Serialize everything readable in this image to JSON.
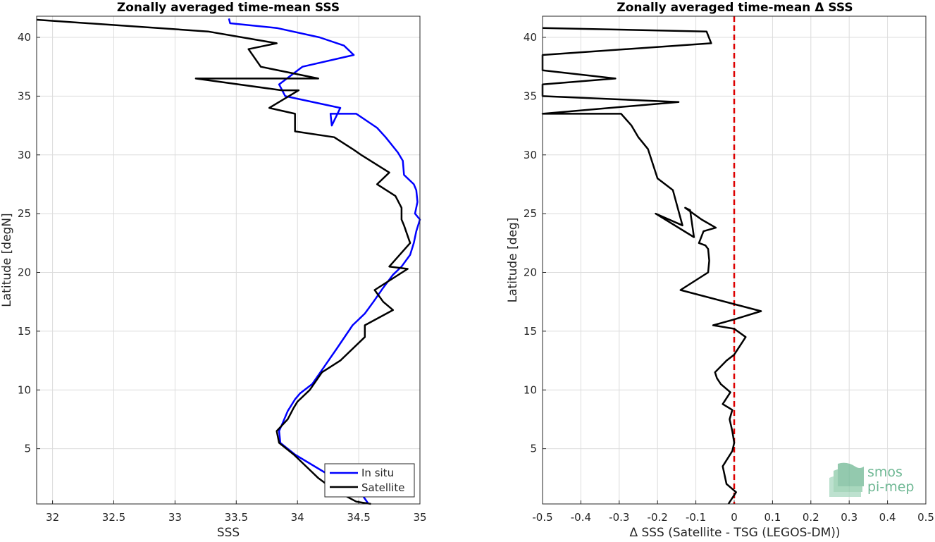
{
  "chart_data": [
    {
      "type": "line",
      "title": "Zonally averaged time-mean SSS",
      "xlabel": "SSS",
      "ylabel": "Latitude [degN]",
      "xlim": [
        31.87,
        35.0
      ],
      "ylim": [
        0.3,
        41.8
      ],
      "xticks": [
        32,
        32.5,
        33,
        33.5,
        34,
        34.5,
        35
      ],
      "yticks": [
        5,
        10,
        15,
        20,
        25,
        30,
        35,
        40
      ],
      "grid": true,
      "legend_position": "bottom-right",
      "series": [
        {
          "name": "In situ",
          "color": "#0000ff",
          "x": [
            34.58,
            34.5,
            34.32,
            34.22,
            33.98,
            33.86,
            33.85,
            33.88,
            33.92,
            33.98,
            34.02,
            34.12,
            34.22,
            34.32,
            34.45,
            34.55,
            34.62,
            34.7,
            34.78,
            34.85,
            34.92,
            34.95,
            34.97,
            35.0,
            34.96,
            34.98,
            34.97,
            34.95,
            34.87,
            34.86,
            34.82,
            34.72,
            34.65,
            34.48,
            34.27,
            34.28,
            34.35,
            33.9,
            33.85,
            34.04,
            34.46,
            34.38,
            34.18,
            33.83,
            33.45,
            33.44
          ],
          "y": [
            0.3,
            1.5,
            2.3,
            3.0,
            4.5,
            5.5,
            6.5,
            7.2,
            8.2,
            9.2,
            9.7,
            10.5,
            12.0,
            13.5,
            15.5,
            16.5,
            17.5,
            18.7,
            19.8,
            20.5,
            21.5,
            22.5,
            23.5,
            24.5,
            25.0,
            26.0,
            27.0,
            27.5,
            28.3,
            29.5,
            30.2,
            31.5,
            32.3,
            33.5,
            33.5,
            32.5,
            34.0,
            35.0,
            36.0,
            37.5,
            38.5,
            39.3,
            40.0,
            40.8,
            41.2,
            41.6
          ],
          "values_note": ""
        },
        {
          "name": "Satellite",
          "color": "#000000",
          "x": [
            34.6,
            34.48,
            34.3,
            34.17,
            34.12,
            33.97,
            33.85,
            33.83,
            33.92,
            33.97,
            34.0,
            34.1,
            34.2,
            34.35,
            34.55,
            34.55,
            34.78,
            34.7,
            34.63,
            34.9,
            34.75,
            34.92,
            34.87,
            34.85,
            34.85,
            34.8,
            34.65,
            34.75,
            34.52,
            34.45,
            34.3,
            33.98,
            33.98,
            33.77,
            34.01,
            33.87,
            33.17,
            34.17,
            33.7,
            33.6,
            33.83,
            33.27,
            31.87
          ],
          "y": [
            0.3,
            0.5,
            1.5,
            2.5,
            3.0,
            4.5,
            5.5,
            6.5,
            7.5,
            8.5,
            9.0,
            10.0,
            11.5,
            12.5,
            14.5,
            15.5,
            16.8,
            17.5,
            18.5,
            20.3,
            20.5,
            22.5,
            24.0,
            24.5,
            25.5,
            26.5,
            27.5,
            28.5,
            30.0,
            30.5,
            31.5,
            32.0,
            33.5,
            34.0,
            35.5,
            35.5,
            36.5,
            36.5,
            37.5,
            39.0,
            39.5,
            40.5,
            41.5
          ],
          "values_note": ""
        }
      ],
      "legend": [
        "In situ",
        "Satellite"
      ]
    },
    {
      "type": "line",
      "title": "Zonally averaged time-mean Δ SSS",
      "xlabel": "Δ SSS (Satellite - TSG (LEGOS-DM))",
      "ylabel": "Latitude [deg]",
      "xlim": [
        -0.5,
        0.5
      ],
      "ylim": [
        0.3,
        41.8
      ],
      "xticks": [
        -0.5,
        -0.4,
        -0.3,
        -0.2,
        -0.1,
        0,
        0.1,
        0.2,
        0.3,
        0.4,
        0.5
      ],
      "yticks": [
        5,
        10,
        15,
        20,
        25,
        30,
        35,
        40
      ],
      "grid": true,
      "reference_line": {
        "x": 0,
        "color": "#dd0000",
        "style": "dashed"
      },
      "series": [
        {
          "name": "",
          "color": "#000000",
          "x": [
            -0.015,
            0.005,
            -0.02,
            -0.03,
            -0.005,
            0.0,
            -0.005,
            -0.012,
            -0.005,
            -0.03,
            -0.01,
            -0.035,
            -0.045,
            -0.05,
            -0.02,
            0.0,
            0.03,
            0.0,
            -0.055,
            0.0,
            0.07,
            0.0,
            -0.14,
            -0.068,
            -0.065,
            -0.068,
            -0.075,
            -0.092,
            -0.08,
            -0.048,
            -0.085,
            -0.128,
            -0.115,
            -0.105,
            -0.205,
            -0.135,
            -0.16,
            -0.2,
            -0.225,
            -0.25,
            -0.268,
            -0.295,
            -0.5,
            -0.145,
            -0.5,
            -0.5,
            -0.31,
            -0.5,
            -0.5,
            -0.06,
            -0.072,
            -0.5
          ],
          "y": [
            0.3,
            1.3,
            2.0,
            3.5,
            4.8,
            5.5,
            6.5,
            7.5,
            8.3,
            8.8,
            9.8,
            10.5,
            11.0,
            11.5,
            12.5,
            13.0,
            14.5,
            15.2,
            15.5,
            16.0,
            16.7,
            17.3,
            18.5,
            20.0,
            21.0,
            22.0,
            22.3,
            22.5,
            23.5,
            23.8,
            24.5,
            25.5,
            25.3,
            23.0,
            25.0,
            24.0,
            27.0,
            28.0,
            30.5,
            31.5,
            32.5,
            33.5,
            33.5,
            34.5,
            35.0,
            36.0,
            36.5,
            37.2,
            38.5,
            39.5,
            40.5,
            40.8
          ],
          "values_note": ""
        }
      ]
    }
  ],
  "logo": {
    "line1": "smos",
    "line2": "pi-mep",
    "color": "#6fb894"
  }
}
